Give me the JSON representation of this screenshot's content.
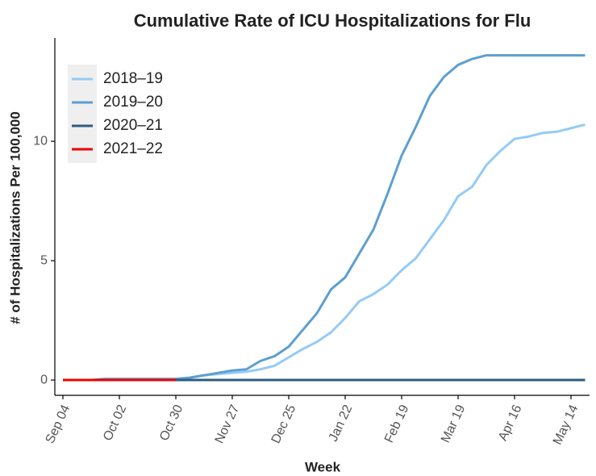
{
  "chart_data": {
    "type": "line",
    "title": "Cumulative Rate of ICU Hospitalizations for Flu",
    "x_label": "Week",
    "y_label": "# of Hospitalizations Per 100,000",
    "categories": [
      "Sep 04",
      null,
      null,
      null,
      "Oct 02",
      null,
      null,
      null,
      "Oct 30",
      null,
      null,
      null,
      "Nov 27",
      null,
      null,
      null,
      "Dec 25",
      null,
      null,
      null,
      "Jan 22",
      null,
      null,
      null,
      "Feb 19",
      null,
      null,
      null,
      "Mar 19",
      null,
      null,
      null,
      "Apr 16",
      null,
      null,
      null,
      "May 14",
      null
    ],
    "series": [
      {
        "name": "2018–19",
        "color": "#94cbf7",
        "values": [
          0,
          0,
          0,
          0,
          0,
          0,
          0,
          0,
          0,
          0.1,
          0.2,
          0.25,
          0.3,
          0.35,
          0.45,
          0.6,
          0.95,
          1.3,
          1.6,
          2.0,
          2.6,
          3.3,
          3.6,
          4.0,
          4.6,
          5.1,
          5.9,
          6.7,
          7.7,
          8.1,
          9.0,
          9.6,
          10.1,
          10.2,
          10.35,
          10.4,
          10.55,
          10.7
        ]
      },
      {
        "name": "2019–20",
        "color": "#5d9fcf",
        "values": [
          0,
          0,
          0,
          0.05,
          0.05,
          0.05,
          0.05,
          0.05,
          0.05,
          0.1,
          0.2,
          0.3,
          0.4,
          0.45,
          0.8,
          1.0,
          1.4,
          2.1,
          2.8,
          3.8,
          4.3,
          5.3,
          6.3,
          7.8,
          9.4,
          10.6,
          11.9,
          12.7,
          13.2,
          13.45,
          13.6,
          13.6,
          13.6,
          13.6,
          13.6,
          13.6,
          13.6,
          13.6
        ]
      },
      {
        "name": "2020–21",
        "color": "#2f5b80",
        "values": [
          0,
          0,
          0,
          0,
          0,
          0,
          0,
          0,
          0,
          0,
          0,
          0,
          0,
          0,
          0,
          0,
          0,
          0,
          0,
          0,
          0,
          0,
          0,
          0,
          0,
          0,
          0,
          0,
          0,
          0,
          0,
          0,
          0,
          0,
          0,
          0,
          0,
          0
        ]
      },
      {
        "name": "2021–22",
        "color": "#ee0000",
        "values": [
          0,
          0,
          0,
          0,
          0,
          0,
          0,
          0,
          0,
          null,
          null,
          null,
          null,
          null,
          null,
          null,
          null,
          null,
          null,
          null,
          null,
          null,
          null,
          null,
          null,
          null,
          null,
          null,
          null,
          null,
          null,
          null,
          null,
          null,
          null,
          null,
          null,
          null
        ]
      }
    ],
    "ylim": [
      -0.64,
      14.33
    ],
    "yticks": [
      0,
      5,
      10
    ],
    "legend": "top-left",
    "grid": false
  }
}
